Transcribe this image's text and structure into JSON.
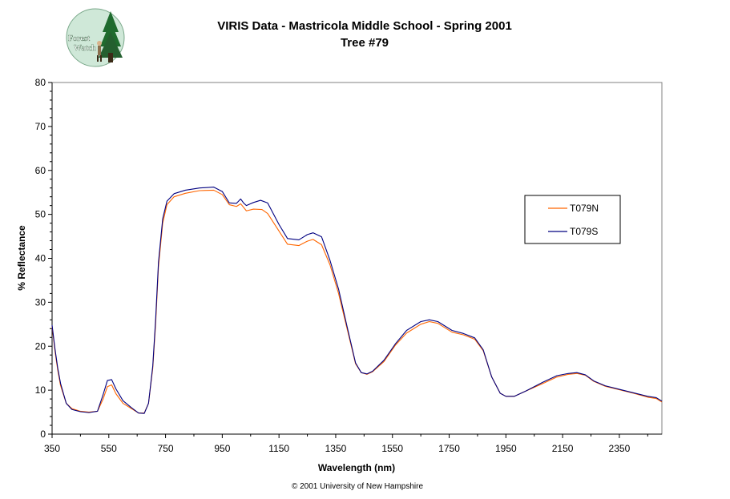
{
  "header": {
    "title": "VIRIS Data - Mastricola Middle School - Spring 2001",
    "subtitle": "Tree #79"
  },
  "logo": {
    "text_line1": "Forest",
    "text_line2": "Watch"
  },
  "footer": {
    "copyright": "© 2001 University of New Hampshire"
  },
  "colors": {
    "series_T079N": "#ff6600",
    "series_T079S": "#000080",
    "logo_bg": "#cfe8d8",
    "logo_tree": "#1f6b2e"
  },
  "chart_data": {
    "type": "line",
    "title": "VIRIS Data - Mastricola Middle School - Spring 2001",
    "subtitle": "Tree #79",
    "xlabel": "Wavelength (nm)",
    "ylabel": "% Reflectance",
    "xlim": [
      350,
      2500
    ],
    "ylim": [
      0,
      80
    ],
    "x_ticks": [
      350,
      550,
      750,
      950,
      1150,
      1350,
      1550,
      1750,
      1950,
      2150,
      2350
    ],
    "y_ticks": [
      0,
      10,
      20,
      30,
      40,
      50,
      60,
      70,
      80
    ],
    "grid": false,
    "legend_position": "right",
    "series": [
      {
        "name": "T079N",
        "color": "#ff6600",
        "points": [
          [
            350,
            24.5
          ],
          [
            360,
            19
          ],
          [
            370,
            14.5
          ],
          [
            380,
            11
          ],
          [
            400,
            7
          ],
          [
            420,
            5.8
          ],
          [
            450,
            5.2
          ],
          [
            480,
            5
          ],
          [
            510,
            5.2
          ],
          [
            530,
            8
          ],
          [
            545,
            10.8
          ],
          [
            560,
            11.2
          ],
          [
            575,
            9.2
          ],
          [
            600,
            7
          ],
          [
            630,
            5.8
          ],
          [
            655,
            4.8
          ],
          [
            675,
            4.8
          ],
          [
            690,
            7
          ],
          [
            705,
            15
          ],
          [
            715,
            25
          ],
          [
            725,
            38
          ],
          [
            740,
            48
          ],
          [
            755,
            52.2
          ],
          [
            780,
            54
          ],
          [
            820,
            54.8
          ],
          [
            870,
            55.4
          ],
          [
            920,
            55.5
          ],
          [
            950,
            54.5
          ],
          [
            975,
            52.2
          ],
          [
            1000,
            51.8
          ],
          [
            1015,
            52.4
          ],
          [
            1025,
            51.6
          ],
          [
            1035,
            50.8
          ],
          [
            1060,
            51.2
          ],
          [
            1090,
            51.1
          ],
          [
            1110,
            50.2
          ],
          [
            1150,
            46.2
          ],
          [
            1180,
            43.2
          ],
          [
            1220,
            42.9
          ],
          [
            1250,
            43.9
          ],
          [
            1270,
            44.3
          ],
          [
            1300,
            43.1
          ],
          [
            1330,
            38.5
          ],
          [
            1360,
            32
          ],
          [
            1390,
            24
          ],
          [
            1420,
            16
          ],
          [
            1440,
            14
          ],
          [
            1460,
            13.6
          ],
          [
            1480,
            14.2
          ],
          [
            1520,
            16.5
          ],
          [
            1560,
            20.2
          ],
          [
            1600,
            23
          ],
          [
            1650,
            25
          ],
          [
            1680,
            25.6
          ],
          [
            1710,
            25.2
          ],
          [
            1760,
            23.2
          ],
          [
            1800,
            22.6
          ],
          [
            1840,
            21.6
          ],
          [
            1870,
            19
          ],
          [
            1900,
            13
          ],
          [
            1930,
            9.3
          ],
          [
            1950,
            8.6
          ],
          [
            1980,
            8.6
          ],
          [
            2020,
            9.8
          ],
          [
            2080,
            11.5
          ],
          [
            2130,
            13
          ],
          [
            2170,
            13.6
          ],
          [
            2200,
            13.8
          ],
          [
            2230,
            13.4
          ],
          [
            2260,
            12
          ],
          [
            2300,
            10.9
          ],
          [
            2350,
            10.1
          ],
          [
            2400,
            9.3
          ],
          [
            2450,
            8.4
          ],
          [
            2480,
            8.1
          ],
          [
            2500,
            7.3
          ]
        ]
      },
      {
        "name": "T079S",
        "color": "#000080",
        "points": [
          [
            350,
            24.8
          ],
          [
            360,
            19.5
          ],
          [
            370,
            15
          ],
          [
            380,
            11.5
          ],
          [
            400,
            7
          ],
          [
            420,
            5.6
          ],
          [
            450,
            5.1
          ],
          [
            480,
            4.9
          ],
          [
            510,
            5.2
          ],
          [
            530,
            9
          ],
          [
            545,
            12.2
          ],
          [
            560,
            12.4
          ],
          [
            575,
            10.3
          ],
          [
            600,
            7.6
          ],
          [
            630,
            6
          ],
          [
            655,
            4.8
          ],
          [
            675,
            4.7
          ],
          [
            690,
            7
          ],
          [
            705,
            15.5
          ],
          [
            715,
            26
          ],
          [
            725,
            39
          ],
          [
            740,
            49
          ],
          [
            755,
            53
          ],
          [
            780,
            54.7
          ],
          [
            820,
            55.5
          ],
          [
            870,
            56
          ],
          [
            920,
            56.2
          ],
          [
            950,
            55.2
          ],
          [
            975,
            52.6
          ],
          [
            1000,
            52.5
          ],
          [
            1015,
            53.5
          ],
          [
            1025,
            52.6
          ],
          [
            1035,
            52
          ],
          [
            1060,
            52.7
          ],
          [
            1085,
            53.2
          ],
          [
            1110,
            52.6
          ],
          [
            1150,
            47.7
          ],
          [
            1180,
            44.5
          ],
          [
            1220,
            44.2
          ],
          [
            1250,
            45.4
          ],
          [
            1270,
            45.8
          ],
          [
            1300,
            44.9
          ],
          [
            1330,
            39.5
          ],
          [
            1360,
            33
          ],
          [
            1390,
            24.5
          ],
          [
            1420,
            16.2
          ],
          [
            1440,
            14
          ],
          [
            1460,
            13.7
          ],
          [
            1480,
            14.3
          ],
          [
            1520,
            16.8
          ],
          [
            1560,
            20.5
          ],
          [
            1600,
            23.6
          ],
          [
            1650,
            25.6
          ],
          [
            1680,
            26
          ],
          [
            1710,
            25.6
          ],
          [
            1760,
            23.6
          ],
          [
            1800,
            22.9
          ],
          [
            1840,
            21.9
          ],
          [
            1870,
            19.2
          ],
          [
            1900,
            13
          ],
          [
            1930,
            9.3
          ],
          [
            1950,
            8.6
          ],
          [
            1980,
            8.6
          ],
          [
            2020,
            9.8
          ],
          [
            2080,
            11.8
          ],
          [
            2130,
            13.3
          ],
          [
            2170,
            13.8
          ],
          [
            2200,
            14
          ],
          [
            2230,
            13.5
          ],
          [
            2260,
            12.1
          ],
          [
            2300,
            11
          ],
          [
            2350,
            10.2
          ],
          [
            2400,
            9.4
          ],
          [
            2450,
            8.6
          ],
          [
            2480,
            8.3
          ],
          [
            2500,
            7.5
          ]
        ]
      }
    ]
  }
}
